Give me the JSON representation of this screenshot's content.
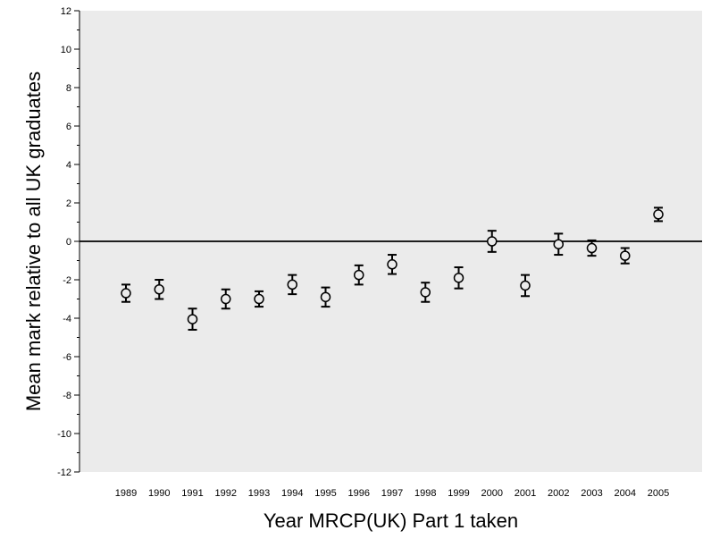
{
  "chart_data": {
    "type": "scatter",
    "title": "",
    "xlabel": "Year MRCP(UK) Part 1 taken",
    "ylabel": "Mean mark relative to all UK graduates",
    "ylim": [
      -12,
      12
    ],
    "y_ticks": [
      12,
      10,
      8,
      6,
      4,
      2,
      0,
      -2,
      -4,
      -6,
      -8,
      -10,
      -12
    ],
    "grid": false,
    "reference_line_y": 0,
    "background_color": "#ebebeb",
    "marker": "open-circle",
    "error_bars": true,
    "categories": [
      "1989",
      "1990",
      "1991",
      "1992",
      "1993",
      "1994",
      "1995",
      "1996",
      "1997",
      "1998",
      "1999",
      "2000",
      "2001",
      "2002",
      "2003",
      "2004",
      "2005"
    ],
    "values": [
      -2.7,
      -2.5,
      -4.05,
      -3.0,
      -3.0,
      -2.25,
      -2.9,
      -1.75,
      -1.2,
      -2.65,
      -1.9,
      0.0,
      -2.3,
      -0.15,
      -0.35,
      -0.75,
      1.4
    ],
    "error_low": [
      -3.15,
      -3.0,
      -4.6,
      -3.5,
      -3.4,
      -2.75,
      -3.4,
      -2.25,
      -1.7,
      -3.15,
      -2.45,
      -0.55,
      -2.85,
      -0.7,
      -0.75,
      -1.15,
      1.05
    ],
    "error_high": [
      -2.25,
      -2.0,
      -3.5,
      -2.5,
      -2.6,
      -1.75,
      -2.4,
      -1.25,
      -0.7,
      -2.15,
      -1.35,
      0.55,
      -1.75,
      0.4,
      0.05,
      -0.35,
      1.75
    ]
  }
}
